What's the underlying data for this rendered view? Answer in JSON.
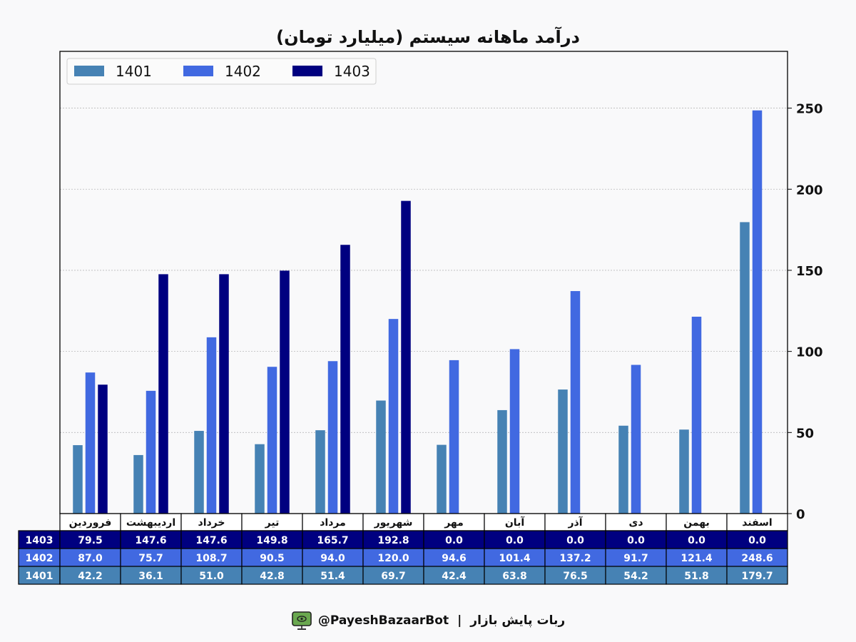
{
  "chart_data": {
    "type": "bar",
    "title": "درآمد ماهانه سیستم (میلیارد تومان)",
    "categories": [
      "فروردین",
      "اردیبهشت",
      "خرداد",
      "تیر",
      "مرداد",
      "شهریور",
      "مهر",
      "آبان",
      "آذر",
      "دی",
      "بهمن",
      "اسفند"
    ],
    "series": [
      {
        "name": "1401",
        "color": "#4682b4",
        "values": [
          42.2,
          36.1,
          51.0,
          42.8,
          51.4,
          69.7,
          42.4,
          63.8,
          76.5,
          54.2,
          51.8,
          179.7
        ]
      },
      {
        "name": "1402",
        "color": "#4169e1",
        "values": [
          87.0,
          75.7,
          108.7,
          90.5,
          94.0,
          120.0,
          94.6,
          101.4,
          137.2,
          91.7,
          121.4,
          248.6
        ]
      },
      {
        "name": "1403",
        "color": "#000080",
        "values": [
          79.5,
          147.6,
          147.6,
          149.8,
          165.7,
          192.8,
          0.0,
          0.0,
          0.0,
          0.0,
          0.0,
          0.0
        ]
      }
    ],
    "ylim": [
      0,
      285
    ],
    "yticks": [
      0,
      50,
      100,
      150,
      200,
      250
    ],
    "y_axis_side": "right",
    "grid": true,
    "legend_position": "top-left",
    "table": {
      "row_order": [
        "1403",
        "1402",
        "1401"
      ],
      "values": {
        "1403": [
          "79.5",
          "147.6",
          "147.6",
          "149.8",
          "165.7",
          "192.8",
          "0.0",
          "0.0",
          "0.0",
          "0.0",
          "0.0",
          "0.0"
        ],
        "1402": [
          "87.0",
          "75.7",
          "108.7",
          "90.5",
          "94.0",
          "120.0",
          "94.6",
          "101.4",
          "137.2",
          "91.7",
          "121.4",
          "248.6"
        ],
        "1401": [
          "42.2",
          "36.1",
          "51.0",
          "42.8",
          "51.4",
          "69.7",
          "42.4",
          "63.8",
          "76.5",
          "54.2",
          "51.8",
          "179.7"
        ]
      }
    }
  },
  "footer": {
    "bot_handle": "@PayeshBazaarBot",
    "separator": "|",
    "bot_name": "ربات پایش بازار",
    "icon": "monitor-icon"
  }
}
